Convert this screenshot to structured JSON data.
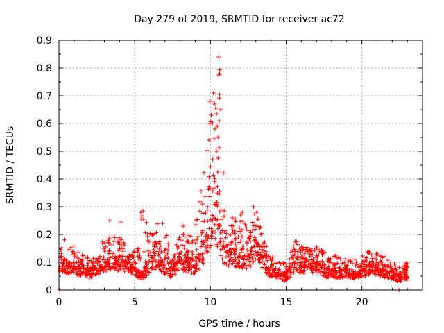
{
  "chart_data": {
    "type": "scatter",
    "title": "Day 279 of 2019, SRMTID for receiver ac72",
    "xlabel": "GPS time / hours",
    "ylabel": "SRMTID / TECUs",
    "xlim": [
      0,
      24
    ],
    "ylim": [
      0,
      0.9
    ],
    "xticks": [
      0,
      5,
      10,
      15,
      20
    ],
    "yticks": [
      0,
      0.1,
      0.2,
      0.3,
      0.4,
      0.5,
      0.6,
      0.7,
      0.8,
      0.9
    ],
    "xtick_labels": [
      "0",
      "5",
      "10",
      "15",
      "20"
    ],
    "ytick_labels": [
      "0",
      "0.1",
      "0.2",
      "0.3",
      "0.4",
      "0.5",
      "0.6",
      "0.7",
      "0.8",
      "0.9"
    ],
    "grid": true,
    "marker": "+",
    "color": "#ff0000",
    "series": [
      {
        "name": "SRMTID",
        "envelope": [
          {
            "x": 0.0,
            "low": 0.04,
            "mean": 0.09,
            "high": 0.17
          },
          {
            "x": 0.5,
            "low": 0.04,
            "mean": 0.1,
            "high": 0.2
          },
          {
            "x": 1.0,
            "low": 0.04,
            "mean": 0.09,
            "high": 0.16
          },
          {
            "x": 1.5,
            "low": 0.04,
            "mean": 0.08,
            "high": 0.13
          },
          {
            "x": 2.0,
            "low": 0.03,
            "mean": 0.07,
            "high": 0.12
          },
          {
            "x": 2.5,
            "low": 0.04,
            "mean": 0.08,
            "high": 0.13
          },
          {
            "x": 3.0,
            "low": 0.05,
            "mean": 0.1,
            "high": 0.19
          },
          {
            "x": 3.5,
            "low": 0.06,
            "mean": 0.11,
            "high": 0.25
          },
          {
            "x": 4.0,
            "low": 0.05,
            "mean": 0.11,
            "high": 0.2
          },
          {
            "x": 4.5,
            "low": 0.05,
            "mean": 0.1,
            "high": 0.16
          },
          {
            "x": 5.0,
            "low": 0.04,
            "mean": 0.08,
            "high": 0.15
          },
          {
            "x": 5.5,
            "low": 0.02,
            "mean": 0.06,
            "high": 0.28
          },
          {
            "x": 6.0,
            "low": 0.04,
            "mean": 0.12,
            "high": 0.22
          },
          {
            "x": 6.5,
            "low": 0.05,
            "mean": 0.14,
            "high": 0.24
          },
          {
            "x": 7.0,
            "low": 0.04,
            "mean": 0.09,
            "high": 0.22
          },
          {
            "x": 7.5,
            "low": 0.03,
            "mean": 0.07,
            "high": 0.12
          },
          {
            "x": 8.0,
            "low": 0.05,
            "mean": 0.13,
            "high": 0.22
          },
          {
            "x": 8.5,
            "low": 0.04,
            "mean": 0.11,
            "high": 0.21
          },
          {
            "x": 9.0,
            "low": 0.04,
            "mean": 0.1,
            "high": 0.24
          },
          {
            "x": 9.5,
            "low": 0.05,
            "mean": 0.17,
            "high": 0.4
          },
          {
            "x": 10.0,
            "low": 0.08,
            "mean": 0.25,
            "high": 0.68
          },
          {
            "x": 10.3,
            "low": 0.1,
            "mean": 0.33,
            "high": 0.71
          },
          {
            "x": 10.6,
            "low": 0.07,
            "mean": 0.27,
            "high": 0.84
          },
          {
            "x": 11.0,
            "low": 0.06,
            "mean": 0.14,
            "high": 0.24
          },
          {
            "x": 11.5,
            "low": 0.06,
            "mean": 0.15,
            "high": 0.26
          },
          {
            "x": 12.0,
            "low": 0.05,
            "mean": 0.13,
            "high": 0.28
          },
          {
            "x": 12.5,
            "low": 0.05,
            "mean": 0.12,
            "high": 0.22
          },
          {
            "x": 13.0,
            "low": 0.08,
            "mean": 0.19,
            "high": 0.3
          },
          {
            "x": 13.5,
            "low": 0.05,
            "mean": 0.11,
            "high": 0.18
          },
          {
            "x": 14.0,
            "low": 0.03,
            "mean": 0.08,
            "high": 0.14
          },
          {
            "x": 14.5,
            "low": 0.03,
            "mean": 0.06,
            "high": 0.1
          },
          {
            "x": 15.0,
            "low": 0.02,
            "mean": 0.06,
            "high": 0.1
          },
          {
            "x": 15.5,
            "low": 0.04,
            "mean": 0.1,
            "high": 0.18
          },
          {
            "x": 16.0,
            "low": 0.04,
            "mean": 0.1,
            "high": 0.17
          },
          {
            "x": 16.5,
            "low": 0.04,
            "mean": 0.09,
            "high": 0.15
          },
          {
            "x": 17.0,
            "low": 0.04,
            "mean": 0.1,
            "high": 0.16
          },
          {
            "x": 17.5,
            "low": 0.03,
            "mean": 0.08,
            "high": 0.14
          },
          {
            "x": 18.0,
            "low": 0.03,
            "mean": 0.07,
            "high": 0.13
          },
          {
            "x": 18.5,
            "low": 0.03,
            "mean": 0.07,
            "high": 0.12
          },
          {
            "x": 19.0,
            "low": 0.03,
            "mean": 0.07,
            "high": 0.12
          },
          {
            "x": 19.5,
            "low": 0.03,
            "mean": 0.06,
            "high": 0.11
          },
          {
            "x": 20.0,
            "low": 0.03,
            "mean": 0.07,
            "high": 0.12
          },
          {
            "x": 20.5,
            "low": 0.04,
            "mean": 0.09,
            "high": 0.16
          },
          {
            "x": 21.0,
            "low": 0.04,
            "mean": 0.08,
            "high": 0.14
          },
          {
            "x": 21.5,
            "low": 0.03,
            "mean": 0.07,
            "high": 0.12
          },
          {
            "x": 22.0,
            "low": 0.03,
            "mean": 0.06,
            "high": 0.1
          },
          {
            "x": 22.5,
            "low": 0.02,
            "mean": 0.05,
            "high": 0.08
          },
          {
            "x": 23.0,
            "low": 0.03,
            "mean": 0.07,
            "high": 0.1
          }
        ],
        "points_per_half_hour": 38,
        "outliers": [
          {
            "x": 0.05,
            "y": 0.0
          },
          {
            "x": 22.45,
            "y": 0.0
          },
          {
            "x": 10.55,
            "y": 0.84
          },
          {
            "x": 10.6,
            "y": 0.78
          },
          {
            "x": 10.55,
            "y": 0.775
          },
          {
            "x": 10.2,
            "y": 0.71
          },
          {
            "x": 10.6,
            "y": 0.705
          },
          {
            "x": 9.95,
            "y": 0.68
          },
          {
            "x": 10.1,
            "y": 0.68
          },
          {
            "x": 10.35,
            "y": 0.655
          },
          {
            "x": 10.4,
            "y": 0.635
          },
          {
            "x": 10.05,
            "y": 0.63
          },
          {
            "x": 9.95,
            "y": 0.6
          },
          {
            "x": 10.45,
            "y": 0.59
          },
          {
            "x": 10.3,
            "y": 0.58
          },
          {
            "x": 10.5,
            "y": 0.55
          },
          {
            "x": 10.25,
            "y": 0.545
          },
          {
            "x": 9.9,
            "y": 0.54
          },
          {
            "x": 10.4,
            "y": 0.5
          },
          {
            "x": 10.5,
            "y": 0.475
          },
          {
            "x": 10.15,
            "y": 0.47
          },
          {
            "x": 10.0,
            "y": 0.445
          },
          {
            "x": 5.4,
            "y": 0.28
          },
          {
            "x": 5.55,
            "y": 0.285
          },
          {
            "x": 3.35,
            "y": 0.25
          },
          {
            "x": 4.1,
            "y": 0.245
          },
          {
            "x": 12.1,
            "y": 0.28
          },
          {
            "x": 12.0,
            "y": 0.27
          },
          {
            "x": 12.85,
            "y": 0.3
          },
          {
            "x": 13.05,
            "y": 0.28
          },
          {
            "x": 6.85,
            "y": 0.24
          },
          {
            "x": 8.2,
            "y": 0.23
          },
          {
            "x": 11.45,
            "y": 0.26
          }
        ]
      }
    ]
  }
}
